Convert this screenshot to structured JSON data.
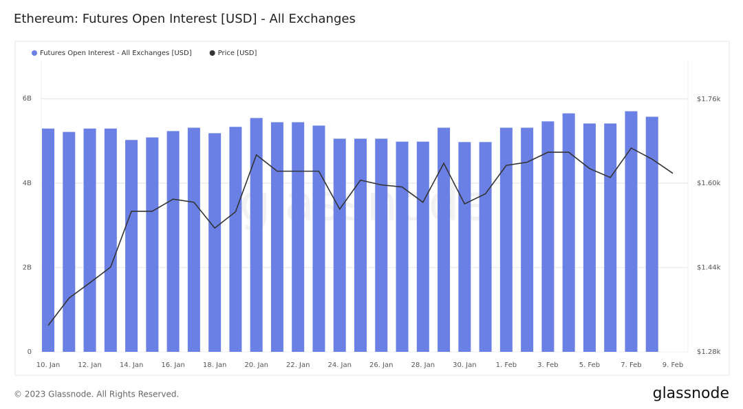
{
  "chart_data": {
    "type": "bar",
    "title": "Ethereum: Futures Open Interest [USD] - All Exchanges",
    "watermark": "glassnode",
    "footer": "© 2023 Glassnode. All Rights Reserved.",
    "logo": "glassnode",
    "categories": [
      "10. Jan",
      null,
      "12. Jan",
      null,
      "14. Jan",
      null,
      "16. Jan",
      null,
      "18. Jan",
      null,
      "20. Jan",
      null,
      "22. Jan",
      null,
      "24. Jan",
      null,
      "26. Jan",
      null,
      "28. Jan",
      null,
      "30. Jan",
      null,
      "1. Feb",
      null,
      "3. Feb",
      null,
      "5. Feb",
      null,
      "7. Feb",
      null,
      "9. Feb"
    ],
    "series": [
      {
        "name": "Futures Open Interest - All Exchanges [USD]",
        "color": "#6b80e4",
        "values": [
          5290000000,
          5210000000,
          5290000000,
          5290000000,
          5020000000,
          5080000000,
          5230000000,
          5310000000,
          5180000000,
          5330000000,
          5540000000,
          5440000000,
          5440000000,
          5360000000,
          5050000000,
          5050000000,
          5050000000,
          4980000000,
          4980000000,
          5310000000,
          4970000000,
          4970000000,
          5310000000,
          5310000000,
          5460000000,
          5650000000,
          5410000000,
          5410000000,
          5700000000,
          5570000000,
          null
        ]
      },
      {
        "name": "Price [USD]",
        "color": "#333333",
        "type": "line",
        "axis": "y2",
        "values": [
          1330,
          1382,
          1411,
          1441,
          1547,
          1547,
          1570,
          1564,
          1515,
          1546,
          1654,
          1623,
          1623,
          1623,
          1551,
          1606,
          1597,
          1593,
          1564,
          1638,
          1561,
          1580,
          1634,
          1640,
          1659,
          1659,
          1628,
          1611,
          1667,
          1646,
          1619
        ]
      }
    ],
    "ylim": [
      0,
      6900000000
    ],
    "yticks": [
      {
        "value": 0,
        "label": "0"
      },
      {
        "value": 2000000000,
        "label": "2B"
      },
      {
        "value": 4000000000,
        "label": "4B"
      },
      {
        "value": 6000000000,
        "label": "6B"
      }
    ],
    "y2lim": [
      1280,
      1833
    ],
    "y2ticks": [
      {
        "value": 1280,
        "label": "$1.28k"
      },
      {
        "value": 1440,
        "label": "$1.44k"
      },
      {
        "value": 1600,
        "label": "$1.60k"
      },
      {
        "value": 1760,
        "label": "$1.76k"
      }
    ],
    "grid": true,
    "legend": "top-left"
  }
}
